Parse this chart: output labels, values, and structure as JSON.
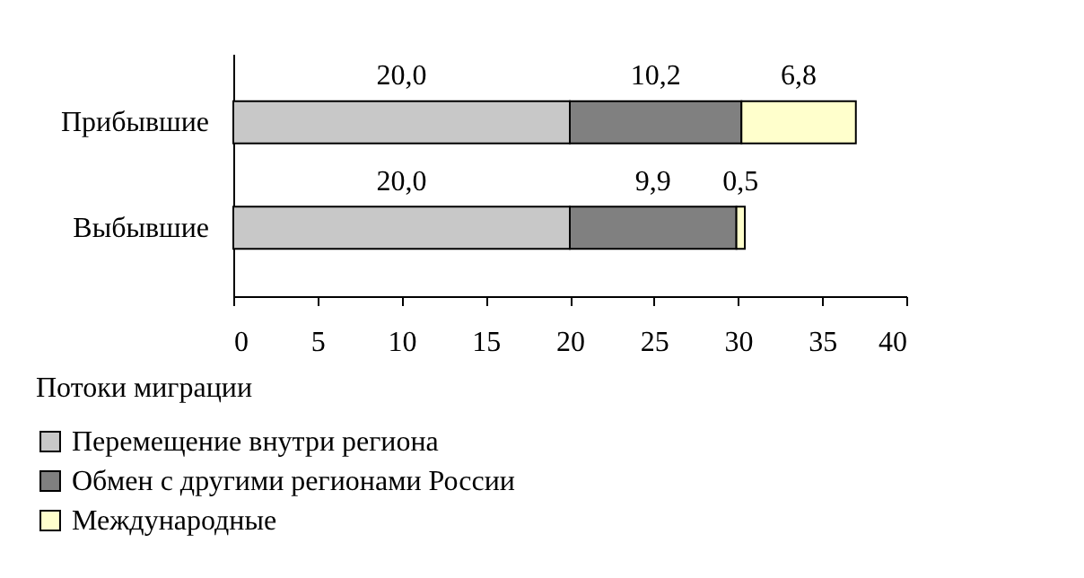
{
  "chart_data": {
    "type": "bar",
    "orientation": "horizontal",
    "stacked": true,
    "categories": [
      "Прибывшие",
      "Выбывшие"
    ],
    "series": [
      {
        "name": "Перемещение внутри региона",
        "color": "#c8c8c8",
        "values": [
          20.0,
          20.0
        ],
        "value_labels": [
          "20,0",
          "20,0"
        ]
      },
      {
        "name": "Обмен с другими регионами России",
        "color": "#808080",
        "values": [
          10.2,
          9.9
        ],
        "value_labels": [
          "10,2",
          "9,9"
        ]
      },
      {
        "name": "Международные",
        "color": "#ffffcc",
        "values": [
          6.8,
          0.5
        ],
        "value_labels": [
          "6,8",
          "0,5"
        ]
      }
    ],
    "xlim": [
      0,
      40
    ],
    "xticks": [
      0,
      5,
      10,
      15,
      20,
      25,
      30,
      35,
      40
    ],
    "legend_title": "Потоки миграции",
    "legend": "bottom left",
    "grid": false
  }
}
